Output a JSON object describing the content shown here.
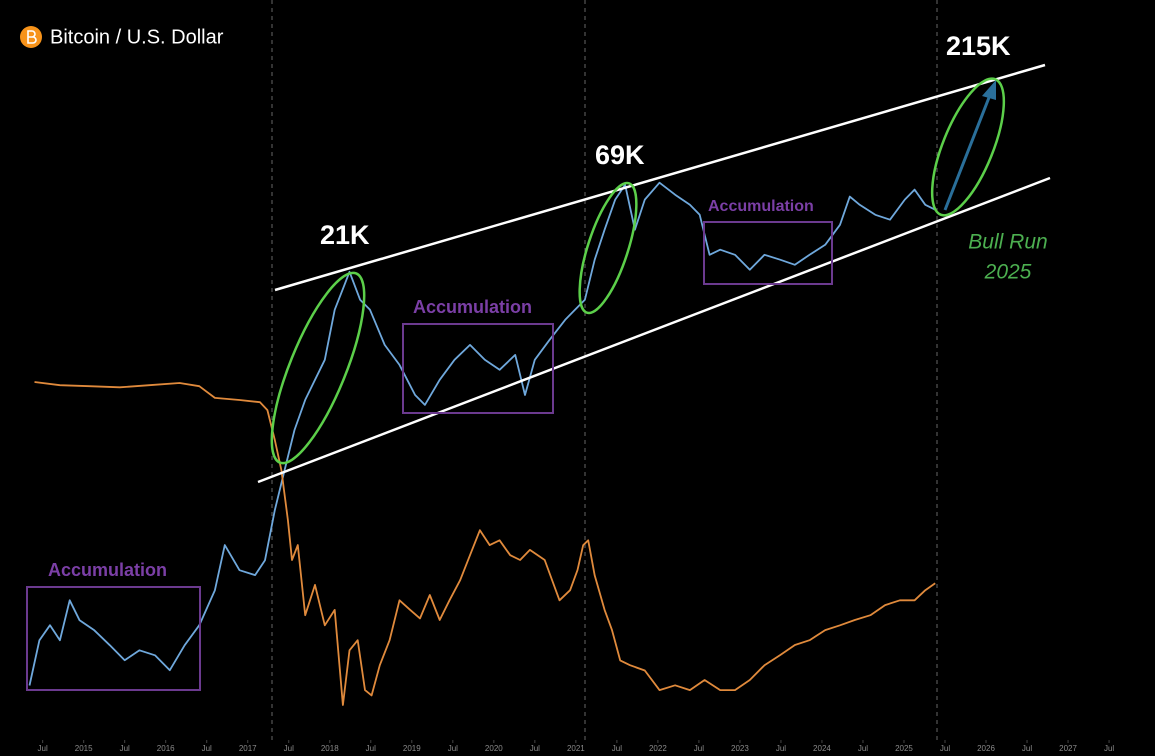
{
  "chart_data": {
    "type": "line",
    "title": "Bitcoin / U.S. Dollar",
    "annotations": [
      "21K",
      "69K",
      "215K",
      "Accumulation",
      "Accumulation",
      "Accumulation",
      "Bull Run",
      "2025"
    ],
    "xlim": [
      2013.98,
      2028.06
    ],
    "xticks": [
      {
        "value": 2014.5,
        "label": "Jul"
      },
      2015,
      {
        "value": 2015.5,
        "label": "Jul"
      },
      2016,
      {
        "value": 2016.5,
        "label": "Jul"
      },
      2017,
      {
        "value": 2017.5,
        "label": "Jul"
      },
      2018,
      {
        "value": 2018.5,
        "label": "Jul"
      },
      2019,
      {
        "value": 2019.5,
        "label": "Jul"
      },
      2020,
      {
        "value": 2020.5,
        "label": "Jul"
      },
      2021,
      {
        "value": 2021.5,
        "label": "Jul"
      },
      2022,
      {
        "value": 2022.5,
        "label": "Jul"
      },
      2023,
      {
        "value": 2023.5,
        "label": "Jul"
      },
      2024,
      {
        "value": 2024.5,
        "label": "Jul"
      },
      2025,
      {
        "value": 2025.5,
        "label": "Jul"
      },
      2026,
      {
        "value": 2026.5,
        "label": "Jul"
      },
      2027,
      {
        "value": 2027.5,
        "label": "Jul"
      }
    ],
    "ylim": [
      89,
      447000
    ],
    "ylog": true,
    "y2lim": [
      24.8,
      167.1
    ],
    "series": [
      {
        "color": "#6fa8dc",
        "x": [
          2014.34,
          2014.46,
          2014.59,
          2014.71,
          2014.83,
          2014.95,
          2015.13,
          2015.32,
          2015.5,
          2015.68,
          2015.87,
          2016.05,
          2016.23,
          2016.41,
          2016.6,
          2016.72,
          2016.9,
          2017.09,
          2017.21,
          2017.33,
          2017.45,
          2017.57,
          2017.7,
          2017.82,
          2017.94,
          2018.06,
          2018.18,
          2018.24,
          2018.37,
          2018.49,
          2018.67,
          2018.85,
          2019.04,
          2019.16,
          2019.34,
          2019.52,
          2019.71,
          2019.89,
          2020.07,
          2020.26,
          2020.38,
          2020.5,
          2020.68,
          2020.87,
          2020.99,
          2021.11,
          2021.23,
          2021.35,
          2021.48,
          2021.6,
          2021.72,
          2021.84,
          2022.02,
          2022.21,
          2022.39,
          2022.51,
          2022.63,
          2022.76,
          2022.94,
          2023.12,
          2023.3,
          2023.49,
          2023.67,
          2023.85,
          2024.04,
          2024.22,
          2024.34,
          2024.46,
          2024.65,
          2024.83,
          2025.01,
          2025.13,
          2025.26,
          2025.38
        ],
        "values": [
          197,
          328,
          389,
          328,
          515,
          411,
          367,
          310,
          262,
          293,
          277,
          234,
          310,
          389,
          577,
          959,
          723,
          684,
          809,
          1422,
          2234,
          3508,
          4930,
          6180,
          7740,
          13600,
          18030,
          20890,
          15240,
          13600,
          9160,
          7310,
          5210,
          4660,
          6180,
          7740,
          9160,
          7740,
          6920,
          8180,
          5210,
          7740,
          9700,
          12160,
          13600,
          15240,
          23930,
          33570,
          47100,
          55720,
          33570,
          47100,
          57020,
          49800,
          44460,
          39720,
          25290,
          26790,
          25290,
          21380,
          25290,
          23930,
          22590,
          25290,
          28310,
          35480,
          48750,
          44460,
          39720,
          37580,
          47100,
          52720,
          44460,
          42070
        ]
      },
      {
        "color": "#e08a3c",
        "axis": "y2",
        "x": [
          2014.4,
          2014.71,
          2015.07,
          2015.44,
          2015.8,
          2016.17,
          2016.41,
          2016.6,
          2016.9,
          2017.15,
          2017.24,
          2017.33,
          2017.41,
          2017.49,
          2017.54,
          2017.61,
          2017.7,
          2017.82,
          2017.94,
          2018.06,
          2018.16,
          2018.24,
          2018.34,
          2018.43,
          2018.51,
          2018.61,
          2018.73,
          2018.85,
          2018.98,
          2019.1,
          2019.22,
          2019.34,
          2019.46,
          2019.59,
          2019.71,
          2019.83,
          2019.95,
          2020.07,
          2020.2,
          2020.32,
          2020.44,
          2020.62,
          2020.8,
          2020.93,
          2021.02,
          2021.09,
          2021.15,
          2021.23,
          2021.35,
          2021.44,
          2021.54,
          2021.66,
          2021.84,
          2022.02,
          2022.21,
          2022.39,
          2022.57,
          2022.76,
          2022.94,
          2023.12,
          2023.3,
          2023.49,
          2023.67,
          2023.85,
          2024.04,
          2024.22,
          2024.4,
          2024.59,
          2024.77,
          2024.95,
          2025.13,
          2025.26,
          2025.38
        ],
        "values": [
          95.2,
          94.6,
          94.4,
          94.2,
          94.6,
          95.0,
          94.4,
          92.2,
          91.8,
          91.4,
          89.9,
          84.3,
          78.6,
          69.2,
          61.7,
          64.5,
          51.3,
          57.0,
          49.4,
          52.3,
          34.4,
          44.7,
          46.6,
          37.2,
          36.2,
          41.9,
          46.6,
          54.1,
          52.3,
          50.7,
          55.1,
          50.4,
          54.1,
          57.9,
          62.6,
          67.3,
          64.5,
          65.4,
          62.6,
          61.7,
          63.6,
          61.7,
          54.1,
          56.0,
          59.8,
          64.5,
          65.4,
          58.8,
          52.3,
          48.5,
          42.8,
          41.9,
          40.9,
          37.2,
          38.1,
          37.2,
          39.1,
          37.2,
          37.2,
          39.1,
          41.9,
          43.8,
          45.7,
          46.6,
          48.5,
          49.4,
          50.4,
          51.3,
          53.2,
          54.1,
          54.1,
          56.0,
          57.3
        ]
      }
    ]
  }
}
